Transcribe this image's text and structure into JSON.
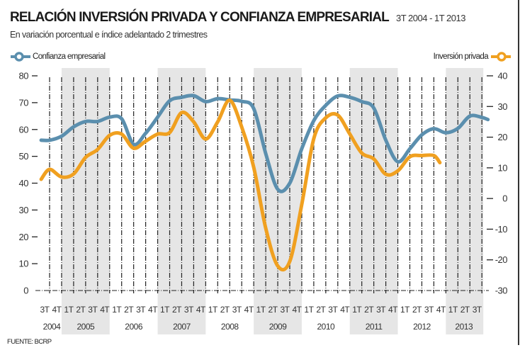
{
  "header": {
    "title": "RELACIÓN INVERSIÓN PRIVADA Y CONFIANZA EMPRESARIAL",
    "range": "3T 2004 - 1T 2013",
    "subtitle": "En variación porcentual e índice adelantado 2 trimestres"
  },
  "legend": {
    "left_label": "Confianza empresarial",
    "right_label": "Inversión privada"
  },
  "source": "FUENTE: BCRP",
  "colors": {
    "confianza": "#5b8fae",
    "inversion": "#f0a020",
    "band": "#e6e6e6"
  },
  "chart_data": {
    "type": "line",
    "title": "RELACIÓN INVERSIÓN PRIVADA Y CONFIANZA EMPRESARIAL",
    "subtitle": "En variación porcentual e índice adelantado 2 trimestres",
    "x": [
      "3T 2004",
      "4T 2004",
      "1T 2005",
      "2T 2005",
      "3T 2005",
      "4T 2005",
      "1T 2006",
      "2T 2006",
      "3T 2006",
      "4T 2006",
      "1T 2007",
      "2T 2007",
      "3T 2007",
      "4T 2007",
      "1T 2008",
      "2T 2008",
      "3T 2008",
      "4T 2008",
      "1T 2009",
      "2T 2009",
      "3T 2009",
      "4T 2009",
      "1T 2010",
      "2T 2010",
      "3T 2010",
      "4T 2010",
      "1T 2011",
      "2T 2011",
      "3T 2011",
      "4T 2011",
      "1T 2012",
      "2T 2012",
      "3T 2012",
      "4T 2012",
      "1T 2013",
      "2T 2013",
      "3T 2013"
    ],
    "quarter_labels": [
      "3T",
      "4T",
      "1T",
      "2T",
      "3T",
      "4T",
      "1T",
      "2T",
      "3T",
      "4T",
      "1T",
      "2T",
      "3T",
      "4T",
      "1T",
      "2T",
      "3T",
      "4T",
      "1T",
      "2T",
      "3T",
      "4T",
      "1T",
      "2T",
      "3T",
      "4T",
      "1T",
      "2T",
      "3T",
      "4T",
      "1T",
      "2T",
      "3T",
      "4T",
      "1T",
      "2T",
      "3T"
    ],
    "year_labels": [
      {
        "label": "2004",
        "first": 0,
        "last": 1,
        "shaded": false
      },
      {
        "label": "2005",
        "first": 2,
        "last": 5,
        "shaded": true
      },
      {
        "label": "2006",
        "first": 6,
        "last": 9,
        "shaded": false
      },
      {
        "label": "2007",
        "first": 10,
        "last": 13,
        "shaded": true
      },
      {
        "label": "2008",
        "first": 14,
        "last": 17,
        "shaded": false
      },
      {
        "label": "2009",
        "first": 18,
        "last": 21,
        "shaded": true
      },
      {
        "label": "2010",
        "first": 22,
        "last": 25,
        "shaded": false
      },
      {
        "label": "2011",
        "first": 26,
        "last": 29,
        "shaded": true
      },
      {
        "label": "2012",
        "first": 30,
        "last": 33,
        "shaded": false
      },
      {
        "label": "2013",
        "first": 34,
        "last": 36,
        "shaded": true
      }
    ],
    "series": [
      {
        "name": "Confianza empresarial",
        "axis": "left",
        "values": [
          56,
          57.5,
          61,
          63,
          63,
          64.6,
          64,
          54.5,
          58.6,
          64.6,
          70.7,
          72,
          72.6,
          70.4,
          71.5,
          71,
          70.5,
          67.8,
          51,
          37.7,
          40,
          52.8,
          63.3,
          69,
          72.5,
          72,
          70.4,
          68,
          56,
          48,
          52.8,
          58,
          60.3,
          58.8,
          60.4,
          65,
          64.5
        ]
      },
      {
        "name": "Inversión privada",
        "axis": "right",
        "values": [
          9.5,
          7,
          8,
          13.4,
          16,
          20.6,
          21,
          16.4,
          18.7,
          21,
          21.5,
          28,
          25,
          19.4,
          25,
          32,
          23.3,
          10.2,
          -9.7,
          -22,
          -20.5,
          -2,
          19.5,
          26.3,
          27.2,
          21,
          14.8,
          12.9,
          7.9,
          9,
          13.6,
          14,
          14,
          null,
          null,
          null,
          null
        ]
      }
    ],
    "y_left": {
      "ticks": [
        0,
        10,
        20,
        30,
        40,
        50,
        60,
        70,
        80
      ],
      "range": [
        0,
        80
      ]
    },
    "y_right": {
      "ticks": [
        -30,
        -20,
        -10,
        0,
        10,
        20,
        30,
        40
      ],
      "range": [
        -30,
        40
      ]
    },
    "xlabel": "",
    "ylabel_left": "",
    "ylabel_right": "",
    "legend": [
      "Confianza empresarial (top-left)",
      "Inversión privada (top-right)"
    ],
    "grid": "vertical dash-dot line at each quarter"
  }
}
